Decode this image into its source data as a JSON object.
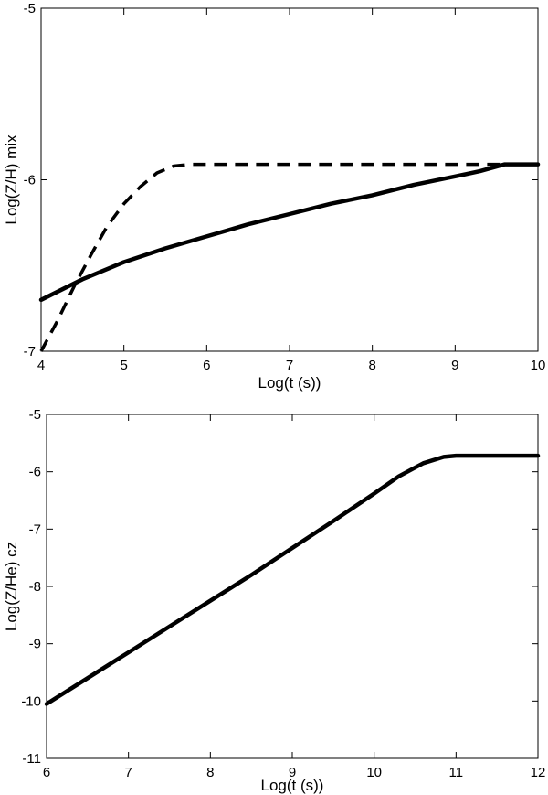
{
  "chart_data": [
    {
      "type": "line",
      "title": "",
      "xlabel": "Log(t (s))",
      "ylabel": "Log(Z/H) mix",
      "xlim": [
        4,
        10
      ],
      "ylim": [
        -7,
        -5
      ],
      "xticks": [
        4,
        5,
        6,
        7,
        8,
        9,
        10
      ],
      "yticks": [
        -7,
        -6,
        -5
      ],
      "xtick_labels": [
        "4",
        "5",
        "6",
        "7",
        "8",
        "9",
        "10"
      ],
      "ytick_labels": [
        "-7",
        "-6",
        "-5"
      ],
      "grid": false,
      "series": [
        {
          "style": "solid",
          "color": "#000000",
          "x": [
            4.0,
            4.5,
            5.0,
            5.5,
            6.0,
            6.5,
            7.0,
            7.5,
            8.0,
            8.5,
            9.0,
            9.3,
            9.6,
            10.0
          ],
          "y": [
            -6.7,
            -6.58,
            -6.48,
            -6.4,
            -6.33,
            -6.26,
            -6.2,
            -6.14,
            -6.09,
            -6.03,
            -5.98,
            -5.95,
            -5.91,
            -5.91
          ]
        },
        {
          "style": "dashed",
          "color": "#000000",
          "x": [
            4.0,
            4.2,
            4.4,
            4.6,
            4.8,
            5.0,
            5.2,
            5.4,
            5.6,
            5.8,
            6.5,
            7.5,
            8.5,
            9.5,
            10.0
          ],
          "y": [
            -7.0,
            -6.82,
            -6.62,
            -6.44,
            -6.27,
            -6.14,
            -6.04,
            -5.96,
            -5.92,
            -5.91,
            -5.91,
            -5.91,
            -5.91,
            -5.91,
            -5.91
          ]
        }
      ]
    },
    {
      "type": "line",
      "title": "",
      "xlabel": "Log(t (s))",
      "ylabel": "Log(Z/He) cz",
      "xlim": [
        6,
        12
      ],
      "ylim": [
        -11,
        -5
      ],
      "xticks": [
        6,
        7,
        8,
        9,
        10,
        11,
        12
      ],
      "yticks": [
        -11,
        -10,
        -9,
        -8,
        -7,
        -6,
        -5
      ],
      "xtick_labels": [
        "6",
        "7",
        "8",
        "9",
        "10",
        "11",
        "12"
      ],
      "ytick_labels": [
        "-11",
        "-10",
        "-9",
        "-8",
        "-7",
        "-6",
        "-5"
      ],
      "grid": false,
      "series": [
        {
          "style": "solid",
          "color": "#000000",
          "x": [
            6.0,
            6.5,
            7.0,
            7.5,
            8.0,
            8.5,
            9.0,
            9.5,
            10.0,
            10.3,
            10.6,
            10.85,
            11.0,
            11.5,
            12.0
          ],
          "y": [
            -10.05,
            -9.6,
            -9.15,
            -8.7,
            -8.25,
            -7.8,
            -7.33,
            -6.86,
            -6.38,
            -6.08,
            -5.85,
            -5.74,
            -5.72,
            -5.72,
            -5.72
          ]
        }
      ]
    }
  ]
}
